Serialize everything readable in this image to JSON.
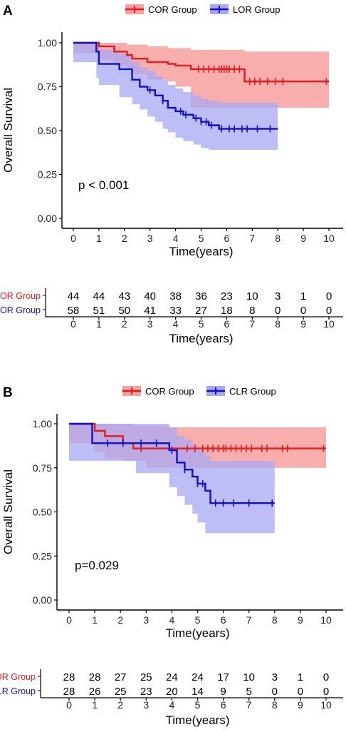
{
  "colors": {
    "cor": "#e41a1c",
    "other": "#1010c8",
    "cor_fill": "#f8a0a0",
    "other_fill": "#a8a8f4"
  },
  "chart_data": [
    {
      "type": "line",
      "panel_label": "A",
      "xlabel": "Time(years)",
      "ylabel": "Overall Survival",
      "xlim": [
        0,
        10
      ],
      "ylim": [
        0,
        1
      ],
      "x_ticks": [
        "0",
        "1",
        "2",
        "3",
        "4",
        "5",
        "6",
        "7",
        "8",
        "9",
        "10"
      ],
      "y_ticks": [
        "0.00",
        "0.25",
        "0.50",
        "0.75",
        "1.00"
      ],
      "p_value": "p < 0.001",
      "legend": [
        "COR Group",
        "LOR Group"
      ],
      "series": [
        {
          "name": "COR Group",
          "x": [
            0,
            1.0,
            1.6,
            2.1,
            2.3,
            2.9,
            3.7,
            4.0,
            4.6,
            6.7,
            10.0
          ],
          "y": [
            1.0,
            0.98,
            0.95,
            0.93,
            0.91,
            0.89,
            0.88,
            0.87,
            0.85,
            0.78,
            0.78
          ],
          "lower": [
            1.0,
            0.94,
            0.9,
            0.87,
            0.85,
            0.82,
            0.79,
            0.78,
            0.75,
            0.63,
            0.63
          ],
          "upper": [
            1.0,
            1.0,
            1.0,
            0.99,
            0.99,
            0.98,
            0.97,
            0.97,
            0.96,
            0.95,
            0.95
          ],
          "censor_x": [
            4.9,
            5.1,
            5.3,
            5.5,
            5.7,
            5.8,
            5.9,
            6.0,
            6.1,
            6.3,
            6.5,
            6.9,
            7.1,
            7.3,
            7.6,
            7.9,
            8.2,
            9.9
          ]
        },
        {
          "name": "LOR Group",
          "x": [
            0,
            0.9,
            1.0,
            1.8,
            2.3,
            2.6,
            2.9,
            3.2,
            3.5,
            3.7,
            4.0,
            4.3,
            4.7,
            5.0,
            5.3,
            5.7,
            8.0
          ],
          "y": [
            1.0,
            0.95,
            0.88,
            0.85,
            0.79,
            0.75,
            0.73,
            0.7,
            0.67,
            0.63,
            0.61,
            0.59,
            0.57,
            0.55,
            0.53,
            0.51,
            0.51
          ],
          "lower": [
            1.0,
            0.89,
            0.8,
            0.76,
            0.69,
            0.65,
            0.62,
            0.58,
            0.55,
            0.51,
            0.49,
            0.46,
            0.44,
            0.42,
            0.4,
            0.39,
            0.39
          ],
          "upper": [
            1.0,
            1.0,
            0.96,
            0.94,
            0.89,
            0.86,
            0.84,
            0.81,
            0.79,
            0.76,
            0.74,
            0.72,
            0.7,
            0.68,
            0.67,
            0.66,
            0.66
          ],
          "censor_x": [
            3.0,
            3.5,
            4.2,
            4.4,
            4.8,
            5.0,
            5.2,
            5.4,
            5.8,
            6.1,
            6.3,
            6.6,
            6.8,
            7.2,
            7.7
          ]
        }
      ],
      "risk_table": {
        "xlabel": "Time(years)",
        "times": [
          "0",
          "1",
          "2",
          "3",
          "4",
          "5",
          "6",
          "7",
          "8",
          "9",
          "10"
        ],
        "rows": [
          {
            "label": "COR Group",
            "values": [
              "44",
              "44",
              "43",
              "40",
              "38",
              "36",
              "23",
              "10",
              "3",
              "1",
              "0"
            ]
          },
          {
            "label": "LOR Group",
            "values": [
              "58",
              "51",
              "50",
              "41",
              "33",
              "27",
              "18",
              "8",
              "0",
              "0",
              "0"
            ]
          }
        ]
      }
    },
    {
      "type": "line",
      "panel_label": "B",
      "xlabel": "Time(years)",
      "ylabel": "Overall Survival",
      "xlim": [
        0,
        10
      ],
      "ylim": [
        0,
        1
      ],
      "x_ticks": [
        "0",
        "1",
        "2",
        "3",
        "4",
        "5",
        "6",
        "7",
        "8",
        "9",
        "10"
      ],
      "y_ticks": [
        "0.00",
        "0.25",
        "0.50",
        "0.75",
        "1.00"
      ],
      "p_value": "p=0.029",
      "legend": [
        "COR Group",
        "CLR Group"
      ],
      "series": [
        {
          "name": "COR Group",
          "x": [
            0,
            1.0,
            1.4,
            2.1,
            2.5,
            3.0,
            3.9,
            10.0
          ],
          "y": [
            1.0,
            0.96,
            0.93,
            0.89,
            0.86,
            0.86,
            0.86,
            0.86
          ],
          "lower": [
            1.0,
            0.89,
            0.84,
            0.8,
            0.79,
            0.79,
            0.75,
            0.75
          ],
          "upper": [
            1.0,
            1.0,
            1.0,
            1.0,
            0.99,
            0.99,
            0.98,
            0.98
          ],
          "censor_x": [
            2.8,
            4.6,
            4.9,
            5.2,
            5.4,
            5.6,
            5.8,
            6.0,
            6.1,
            6.3,
            6.5,
            6.7,
            6.9,
            7.1,
            7.5,
            7.7,
            8.3,
            8.5,
            9.9
          ]
        },
        {
          "name": "CLR Group",
          "x": [
            0,
            0.9,
            2.6,
            3.9,
            4.2,
            4.5,
            4.8,
            5.0,
            5.3,
            5.5,
            8.0
          ],
          "y": [
            1.0,
            0.89,
            0.89,
            0.85,
            0.78,
            0.74,
            0.7,
            0.66,
            0.62,
            0.55,
            0.55
          ],
          "lower": [
            1.0,
            0.79,
            0.79,
            0.72,
            0.64,
            0.59,
            0.54,
            0.49,
            0.44,
            0.38,
            0.38
          ],
          "upper": [
            1.0,
            1.0,
            1.0,
            0.98,
            0.93,
            0.91,
            0.88,
            0.85,
            0.82,
            0.79,
            0.79
          ],
          "censor_x": [
            1.5,
            2.1,
            2.8,
            3.4,
            4.0,
            4.5,
            5.0,
            5.2,
            5.7,
            6.0,
            6.4,
            7.0,
            7.9
          ]
        }
      ],
      "risk_table": {
        "xlabel": "Time(years)",
        "times": [
          "0",
          "1",
          "2",
          "3",
          "4",
          "5",
          "6",
          "7",
          "8",
          "9",
          "10"
        ],
        "rows": [
          {
            "label": "COR Group",
            "values": [
              "28",
              "28",
              "27",
              "25",
              "24",
              "24",
              "17",
              "10",
              "3",
              "1",
              "0"
            ]
          },
          {
            "label": "CLR Group",
            "values": [
              "28",
              "26",
              "25",
              "23",
              "20",
              "14",
              "9",
              "5",
              "0",
              "0",
              "0"
            ]
          }
        ]
      }
    }
  ]
}
